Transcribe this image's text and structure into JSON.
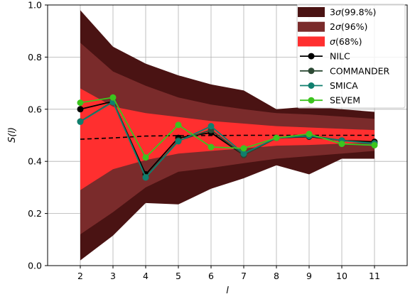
{
  "chart_data": {
    "type": "line",
    "xlabel": "l",
    "ylabel": "S(l)",
    "x": [
      2,
      3,
      4,
      5,
      6,
      7,
      8,
      9,
      10,
      11
    ],
    "xlim": [
      1,
      12
    ],
    "ylim": [
      0.0,
      1.0
    ],
    "xticks": [
      2,
      3,
      4,
      5,
      6,
      7,
      8,
      9,
      10,
      11
    ],
    "yticks": [
      0.0,
      0.2,
      0.4,
      0.6,
      0.8,
      1.0
    ],
    "ytick_labels": [
      "0.0",
      "0.2",
      "0.4",
      "0.6",
      "0.8",
      "1.0"
    ],
    "grid": true,
    "legend_position": "top-right",
    "mean_line": {
      "values": [
        0.485,
        0.49,
        0.497,
        0.499,
        0.499,
        0.5,
        0.5,
        0.5,
        0.5,
        0.5
      ],
      "style": "dashed",
      "color": "#000000"
    },
    "bands": [
      {
        "name": "3σ(99.8%)",
        "color": "#4a1313",
        "lower": [
          0.02,
          0.115,
          0.24,
          0.235,
          0.295,
          0.335,
          0.385,
          0.35,
          0.41,
          0.41
        ],
        "upper": [
          0.98,
          0.84,
          0.775,
          0.73,
          0.695,
          0.672,
          0.6,
          0.61,
          0.6,
          0.59
        ]
      },
      {
        "name": "2σ(96%)",
        "color": "#7a2b2b",
        "lower": [
          0.12,
          0.205,
          0.3,
          0.36,
          0.375,
          0.393,
          0.41,
          0.42,
          0.43,
          0.44
        ],
        "upper": [
          0.855,
          0.745,
          0.69,
          0.645,
          0.618,
          0.6,
          0.585,
          0.58,
          0.572,
          0.563
        ]
      },
      {
        "name": "σ(68%)",
        "color": "#ff2f2f",
        "lower": [
          0.29,
          0.37,
          0.405,
          0.43,
          0.44,
          0.45,
          0.46,
          0.463,
          0.468,
          0.472
        ],
        "upper": [
          0.68,
          0.61,
          0.585,
          0.57,
          0.555,
          0.545,
          0.535,
          0.53,
          0.525,
          0.52
        ]
      }
    ],
    "series": [
      {
        "name": "NILC",
        "color": "#000000",
        "values": [
          0.6,
          0.63,
          0.35,
          0.49,
          0.51,
          0.425,
          0.49,
          0.495,
          0.48,
          0.475
        ]
      },
      {
        "name": "COMMANDER",
        "color": "#2d4a35",
        "values": [
          0.553,
          0.63,
          0.34,
          0.48,
          0.52,
          0.425,
          0.49,
          0.5,
          0.48,
          0.47
        ]
      },
      {
        "name": "SMICA",
        "color": "#0f7f6e",
        "values": [
          0.552,
          0.628,
          0.338,
          0.477,
          0.535,
          0.43,
          0.49,
          0.497,
          0.48,
          0.468
        ]
      },
      {
        "name": "SEVEM",
        "color": "#3cc41e",
        "values": [
          0.625,
          0.645,
          0.415,
          0.54,
          0.455,
          0.45,
          0.49,
          0.505,
          0.467,
          0.462
        ]
      }
    ]
  }
}
